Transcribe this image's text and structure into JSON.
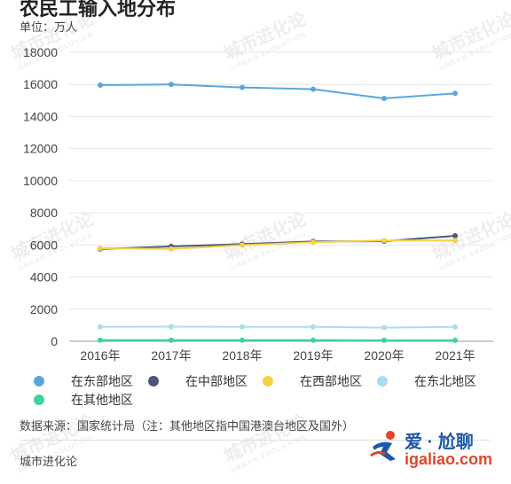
{
  "header": {
    "title": "农民工输入地分布",
    "unit": "单位：万人"
  },
  "legend": [
    {
      "label": "在东部地区",
      "color": "#5aa6dc"
    },
    {
      "label": "在中部地区",
      "color": "#4a5778"
    },
    {
      "label": "在西部地区",
      "color": "#f5d146"
    },
    {
      "label": "在东北地区",
      "color": "#a9dbf2"
    },
    {
      "label": "在其他地区",
      "color": "#3fd39c"
    }
  ],
  "footer": {
    "source": "数据来源：国家统计局（注：其他地区指中国港澳台地区及国外）",
    "publisher": "城市进化论"
  },
  "watermark": {
    "text": "城市进化论",
    "sub": "URBAN EVOLUTION"
  },
  "logo": {
    "main": "爱 · 尬聊",
    "sub": "igaliao.com"
  },
  "chart_data": {
    "type": "line",
    "categories": [
      "2016年",
      "2017年",
      "2018年",
      "2019年",
      "2020年",
      "2021年"
    ],
    "ylim": [
      0,
      18000
    ],
    "yticks": [
      0,
      2000,
      4000,
      6000,
      8000,
      10000,
      12000,
      14000,
      16000,
      18000
    ],
    "grid": true,
    "legend_position": "bottom",
    "series": [
      {
        "name": "在东部地区",
        "color": "#5aa6dc",
        "values": [
          15960,
          16000,
          15810,
          15700,
          15130,
          15440
        ]
      },
      {
        "name": "在中部地区",
        "color": "#4a5778",
        "values": [
          5750,
          5910,
          6050,
          6220,
          6230,
          6570
        ]
      },
      {
        "name": "在西部地区",
        "color": "#f5d146",
        "values": [
          5800,
          5750,
          5990,
          6170,
          6280,
          6280
        ]
      },
      {
        "name": "在东北地区",
        "color": "#a9dbf2",
        "values": [
          900,
          910,
          900,
          900,
          850,
          900
        ]
      },
      {
        "name": "在其他地区",
        "color": "#3fd39c",
        "values": [
          70,
          70,
          70,
          70,
          60,
          60
        ]
      }
    ]
  }
}
